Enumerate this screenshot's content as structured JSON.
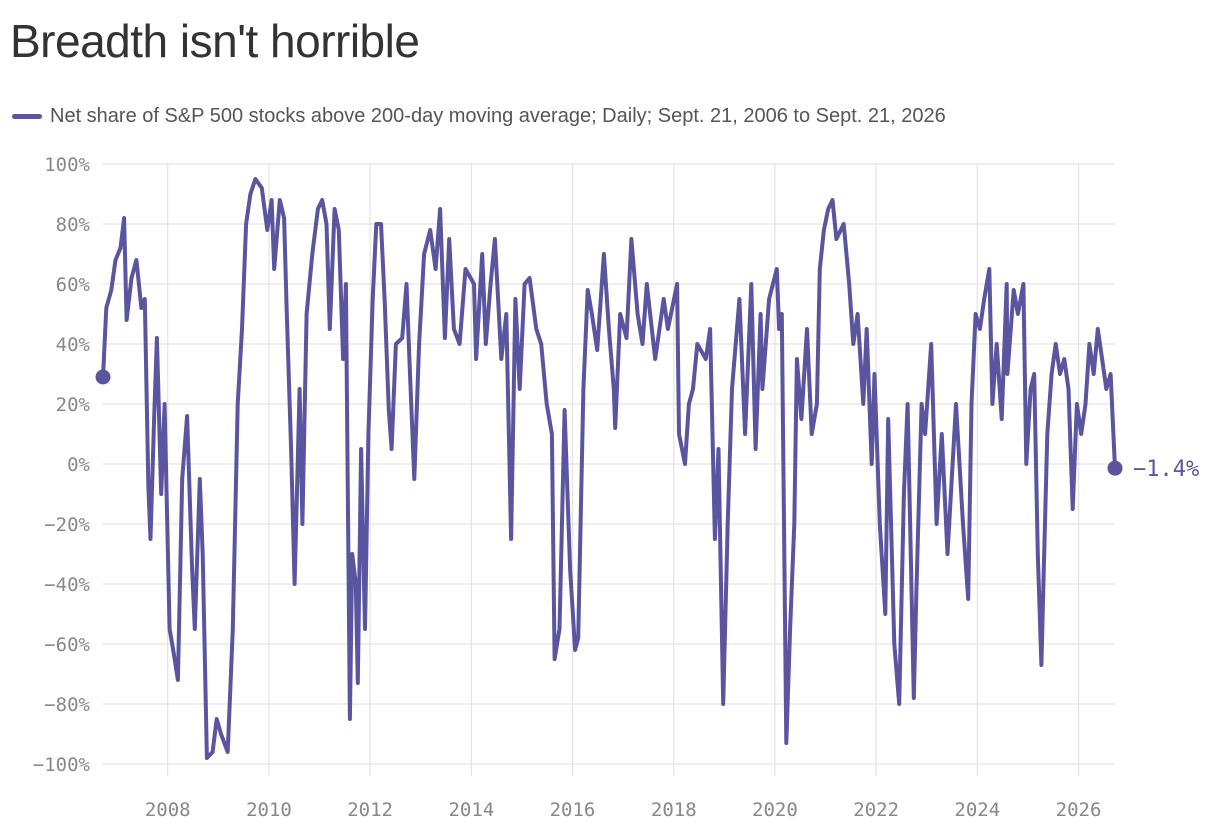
{
  "page": {
    "title": "Breadth isn't horrible",
    "legend_label": "Net share of S&P 500 stocks above 200-day moving average; Daily; Sept. 21, 2006 to Sept. 21, 2026"
  },
  "colors": {
    "series": "#5b55a0",
    "grid": "#e3e3e3",
    "tick": "#888888",
    "title": "#333333"
  },
  "chart_data": {
    "type": "line",
    "title": "Breadth isn't horrible",
    "xlabel": "",
    "ylabel": "",
    "x_start": "2006-09-21",
    "x_end": "2026-09-21",
    "ylim": [
      -100,
      100
    ],
    "y_ticks": [
      100,
      80,
      60,
      40,
      20,
      0,
      -20,
      -40,
      -60,
      -80,
      -100
    ],
    "y_tick_labels": [
      "100%",
      "80%",
      "60%",
      "40%",
      "20%",
      "0%",
      "−20%",
      "−40%",
      "−60%",
      "−80%",
      "−100%"
    ],
    "x_ticks": [
      "2008",
      "2010",
      "2012",
      "2014",
      "2016",
      "2018",
      "2020",
      "2022",
      "2024",
      "2026"
    ],
    "grid": true,
    "start_value": 29,
    "end_value": -1.4,
    "end_label": "−1.4%",
    "series": [
      {
        "name": "Net share of S&P 500 stocks above 200-day moving average",
        "points": [
          [
            "2006-09-21",
            29
          ],
          [
            "2006-10-15",
            52
          ],
          [
            "2006-11-20",
            58
          ],
          [
            "2006-12-20",
            68
          ],
          [
            "2007-01-25",
            72
          ],
          [
            "2007-02-20",
            82
          ],
          [
            "2007-03-10",
            48
          ],
          [
            "2007-04-15",
            62
          ],
          [
            "2007-05-20",
            68
          ],
          [
            "2007-06-25",
            52
          ],
          [
            "2007-07-20",
            55
          ],
          [
            "2007-08-15",
            -8
          ],
          [
            "2007-08-30",
            -25
          ],
          [
            "2007-09-25",
            15
          ],
          [
            "2007-10-15",
            42
          ],
          [
            "2007-11-15",
            -10
          ],
          [
            "2007-12-10",
            20
          ],
          [
            "2008-01-15",
            -55
          ],
          [
            "2008-02-10",
            -62
          ],
          [
            "2008-03-15",
            -72
          ],
          [
            "2008-04-15",
            -5
          ],
          [
            "2008-05-20",
            16
          ],
          [
            "2008-06-25",
            -35
          ],
          [
            "2008-07-15",
            -55
          ],
          [
            "2008-08-20",
            -5
          ],
          [
            "2008-09-10",
            -30
          ],
          [
            "2008-10-10",
            -98
          ],
          [
            "2008-11-20",
            -96
          ],
          [
            "2008-12-20",
            -85
          ],
          [
            "2009-01-20",
            -90
          ],
          [
            "2009-03-09",
            -96
          ],
          [
            "2009-04-15",
            -55
          ],
          [
            "2009-05-20",
            20
          ],
          [
            "2009-06-20",
            45
          ],
          [
            "2009-07-20",
            80
          ],
          [
            "2009-08-20",
            90
          ],
          [
            "2009-09-25",
            95
          ],
          [
            "2009-11-10",
            92
          ],
          [
            "2009-12-20",
            78
          ],
          [
            "2010-01-20",
            88
          ],
          [
            "2010-02-08",
            65
          ],
          [
            "2010-03-20",
            88
          ],
          [
            "2010-04-20",
            82
          ],
          [
            "2010-05-10",
            50
          ],
          [
            "2010-06-10",
            5
          ],
          [
            "2010-07-05",
            -40
          ],
          [
            "2010-08-10",
            25
          ],
          [
            "2010-08-30",
            -20
          ],
          [
            "2010-09-30",
            50
          ],
          [
            "2010-11-10",
            70
          ],
          [
            "2010-12-20",
            85
          ],
          [
            "2011-01-20",
            88
          ],
          [
            "2011-02-20",
            80
          ],
          [
            "2011-03-16",
            45
          ],
          [
            "2011-04-20",
            85
          ],
          [
            "2011-05-20",
            78
          ],
          [
            "2011-06-20",
            35
          ],
          [
            "2011-07-10",
            60
          ],
          [
            "2011-08-08",
            -85
          ],
          [
            "2011-08-25",
            -30
          ],
          [
            "2011-09-20",
            -40
          ],
          [
            "2011-10-04",
            -73
          ],
          [
            "2011-10-28",
            5
          ],
          [
            "2011-11-25",
            -55
          ],
          [
            "2011-12-20",
            10
          ],
          [
            "2012-01-20",
            55
          ],
          [
            "2012-02-15",
            80
          ],
          [
            "2012-03-20",
            80
          ],
          [
            "2012-04-15",
            55
          ],
          [
            "2012-05-15",
            18
          ],
          [
            "2012-06-04",
            5
          ],
          [
            "2012-07-05",
            40
          ],
          [
            "2012-08-20",
            42
          ],
          [
            "2012-09-20",
            60
          ],
          [
            "2012-10-15",
            30
          ],
          [
            "2012-11-15",
            -5
          ],
          [
            "2012-12-20",
            40
          ],
          [
            "2013-01-25",
            70
          ],
          [
            "2013-03-10",
            78
          ],
          [
            "2013-04-18",
            65
          ],
          [
            "2013-05-20",
            85
          ],
          [
            "2013-06-24",
            42
          ],
          [
            "2013-07-25",
            75
          ],
          [
            "2013-08-28",
            45
          ],
          [
            "2013-10-08",
            40
          ],
          [
            "2013-11-20",
            65
          ],
          [
            "2014-01-20",
            60
          ],
          [
            "2014-02-04",
            35
          ],
          [
            "2014-03-20",
            70
          ],
          [
            "2014-04-15",
            40
          ],
          [
            "2014-05-20",
            60
          ],
          [
            "2014-06-20",
            75
          ],
          [
            "2014-08-05",
            35
          ],
          [
            "2014-09-10",
            50
          ],
          [
            "2014-10-15",
            -25
          ],
          [
            "2014-11-15",
            55
          ],
          [
            "2014-12-16",
            25
          ],
          [
            "2015-01-20",
            60
          ],
          [
            "2015-02-25",
            62
          ],
          [
            "2015-04-15",
            45
          ],
          [
            "2015-05-20",
            40
          ],
          [
            "2015-06-29",
            20
          ],
          [
            "2015-08-05",
            10
          ],
          [
            "2015-08-25",
            -65
          ],
          [
            "2015-09-29",
            -55
          ],
          [
            "2015-11-05",
            18
          ],
          [
            "2015-12-15",
            -35
          ],
          [
            "2016-01-20",
            -62
          ],
          [
            "2016-02-11",
            -58
          ],
          [
            "2016-03-20",
            25
          ],
          [
            "2016-04-20",
            58
          ],
          [
            "2016-05-20",
            50
          ],
          [
            "2016-06-27",
            38
          ],
          [
            "2016-08-15",
            70
          ],
          [
            "2016-09-20",
            45
          ],
          [
            "2016-10-25",
            25
          ],
          [
            "2016-11-04",
            12
          ],
          [
            "2016-12-10",
            50
          ],
          [
            "2017-01-25",
            42
          ],
          [
            "2017-03-01",
            75
          ],
          [
            "2017-04-15",
            50
          ],
          [
            "2017-05-20",
            40
          ],
          [
            "2017-06-20",
            60
          ],
          [
            "2017-08-20",
            35
          ],
          [
            "2017-10-20",
            55
          ],
          [
            "2017-11-20",
            45
          ],
          [
            "2018-01-25",
            60
          ],
          [
            "2018-02-08",
            10
          ],
          [
            "2018-03-23",
            0
          ],
          [
            "2018-04-20",
            20
          ],
          [
            "2018-05-20",
            25
          ],
          [
            "2018-06-20",
            40
          ],
          [
            "2018-08-20",
            35
          ],
          [
            "2018-09-20",
            45
          ],
          [
            "2018-10-25",
            -25
          ],
          [
            "2018-11-20",
            5
          ],
          [
            "2018-12-24",
            -80
          ],
          [
            "2019-01-25",
            -20
          ],
          [
            "2019-02-25",
            25
          ],
          [
            "2019-04-20",
            55
          ],
          [
            "2019-05-31",
            10
          ],
          [
            "2019-07-15",
            60
          ],
          [
            "2019-08-15",
            5
          ],
          [
            "2019-09-20",
            50
          ],
          [
            "2019-10-03",
            25
          ],
          [
            "2019-11-20",
            55
          ],
          [
            "2020-01-15",
            65
          ],
          [
            "2020-01-31",
            45
          ],
          [
            "2020-02-20",
            50
          ],
          [
            "2020-03-23",
            -93
          ],
          [
            "2020-04-20",
            -55
          ],
          [
            "2020-05-20",
            -20
          ],
          [
            "2020-06-08",
            35
          ],
          [
            "2020-07-10",
            15
          ],
          [
            "2020-08-20",
            45
          ],
          [
            "2020-09-23",
            10
          ],
          [
            "2020-10-30",
            20
          ],
          [
            "2020-11-20",
            65
          ],
          [
            "2020-12-20",
            78
          ],
          [
            "2021-01-20",
            85
          ],
          [
            "2021-02-20",
            88
          ],
          [
            "2021-03-20",
            75
          ],
          [
            "2021-05-12",
            80
          ],
          [
            "2021-06-20",
            60
          ],
          [
            "2021-07-20",
            40
          ],
          [
            "2021-08-20",
            50
          ],
          [
            "2021-09-30",
            20
          ],
          [
            "2021-10-25",
            45
          ],
          [
            "2021-11-30",
            0
          ],
          [
            "2021-12-20",
            30
          ],
          [
            "2022-01-27",
            -20
          ],
          [
            "2022-03-08",
            -50
          ],
          [
            "2022-03-29",
            15
          ],
          [
            "2022-05-12",
            -60
          ],
          [
            "2022-06-16",
            -80
          ],
          [
            "2022-07-20",
            -10
          ],
          [
            "2022-08-16",
            20
          ],
          [
            "2022-09-30",
            -78
          ],
          [
            "2022-10-20",
            -40
          ],
          [
            "2022-11-25",
            20
          ],
          [
            "2022-12-20",
            10
          ],
          [
            "2023-02-02",
            40
          ],
          [
            "2023-03-13",
            -20
          ],
          [
            "2023-04-20",
            10
          ],
          [
            "2023-05-31",
            -30
          ],
          [
            "2023-07-31",
            20
          ],
          [
            "2023-09-20",
            -20
          ],
          [
            "2023-10-27",
            -45
          ],
          [
            "2023-11-20",
            20
          ],
          [
            "2023-12-20",
            50
          ],
          [
            "2024-01-20",
            45
          ],
          [
            "2024-02-20",
            55
          ],
          [
            "2024-03-28",
            65
          ],
          [
            "2024-04-19",
            20
          ],
          [
            "2024-05-20",
            40
          ],
          [
            "2024-06-25",
            15
          ],
          [
            "2024-07-31",
            60
          ],
          [
            "2024-08-05",
            30
          ],
          [
            "2024-09-20",
            58
          ],
          [
            "2024-10-20",
            50
          ],
          [
            "2024-11-29",
            60
          ],
          [
            "2024-12-20",
            0
          ],
          [
            "2025-01-20",
            25
          ],
          [
            "2025-02-15",
            30
          ],
          [
            "2025-03-13",
            -30
          ],
          [
            "2025-04-08",
            -67
          ],
          [
            "2025-04-25",
            -35
          ],
          [
            "2025-05-20",
            10
          ],
          [
            "2025-06-20",
            30
          ],
          [
            "2025-07-20",
            40
          ],
          [
            "2025-08-20",
            30
          ],
          [
            "2025-09-20",
            35
          ],
          [
            "2025-10-20",
            25
          ],
          [
            "2025-11-20",
            -15
          ],
          [
            "2025-12-20",
            20
          ],
          [
            "2026-01-20",
            10
          ],
          [
            "2026-02-20",
            20
          ],
          [
            "2026-03-20",
            40
          ],
          [
            "2026-04-20",
            30
          ],
          [
            "2026-05-20",
            45
          ],
          [
            "2026-06-20",
            35
          ],
          [
            "2026-07-20",
            25
          ],
          [
            "2026-08-20",
            30
          ],
          [
            "2026-09-21",
            -1.4
          ]
        ]
      }
    ]
  }
}
